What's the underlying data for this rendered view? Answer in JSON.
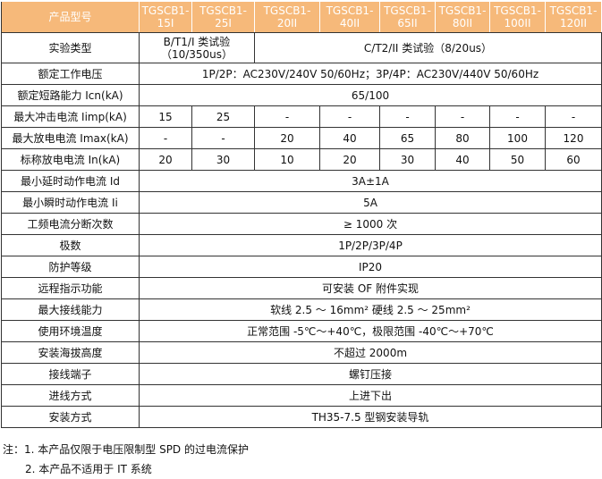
{
  "header": {
    "label": "产品型号",
    "models": [
      "TGSCB1-15I",
      "TGSCB1-25I",
      "TGSCB1-20II",
      "TGSCB1-40II",
      "TGSCB1-65II",
      "TGSCB1-80II",
      "TGSCB1-100II",
      "TGSCB1-120II"
    ]
  },
  "rows": {
    "test_type": {
      "label": "实验类型",
      "class1": "B/T1/I 类试验（10/350us）",
      "class2": "C/T2/II 类试验（8/20us）"
    },
    "rated_voltage": {
      "label": "额定工作电压",
      "value": "1P/2P：AC230V/240V 50/60Hz；3P/4P：AC230V/440V 50/60Hz"
    },
    "short_circuit": {
      "label": "额定短路能力 Icn(kA)",
      "value": "65/100"
    },
    "iimp": {
      "label": "最大冲击电流 Iimp(kA)",
      "values": [
        "15",
        "25",
        "-",
        "-",
        "-",
        "-",
        "-",
        "-"
      ]
    },
    "imax": {
      "label": "最大放电电流 Imax(kA)",
      "values": [
        "-",
        "-",
        "20",
        "40",
        "65",
        "80",
        "100",
        "120"
      ]
    },
    "in": {
      "label": "标称放电电流 In(kA)",
      "values": [
        "20",
        "30",
        "10",
        "20",
        "30",
        "40",
        "50",
        "60"
      ]
    },
    "id": {
      "label": "最小延时动作电流 Id",
      "value": "3A±1A"
    },
    "ii": {
      "label": "最小瞬时动作电流 Ii",
      "value": "5A"
    },
    "breaks": {
      "label": "工频电流分断次数",
      "value": "≥ 1000 次"
    },
    "poles": {
      "label": "极数",
      "value": "1P/2P/3P/4P"
    },
    "ip": {
      "label": "防护等级",
      "value": "IP20"
    },
    "remote": {
      "label": "远程指示功能",
      "value": "可安装 OF 附件实现"
    },
    "wiring": {
      "label": "最大接线能力",
      "value": "软线 2.5 ～ 16mm² 硬线 2.5 ～ 25mm²"
    },
    "temp": {
      "label": "使用环境温度",
      "value": "正常范围 -5℃～+40℃，极限范围 -40℃～+70℃"
    },
    "altitude": {
      "label": "安装海拔高度",
      "value": "不超过 2000m"
    },
    "terminal": {
      "label": "接线端子",
      "value": "螺钉压接"
    },
    "inlet": {
      "label": "进线方式",
      "value": "上进下出"
    },
    "mounting": {
      "label": "安装方式",
      "value": "TH35-7.5 型钢安装导轨"
    }
  },
  "notes": [
    "注：1. 本产品仅限于电压限制型 SPD 的过电流保护",
    "2. 本产品不适用于 IT 系统"
  ]
}
